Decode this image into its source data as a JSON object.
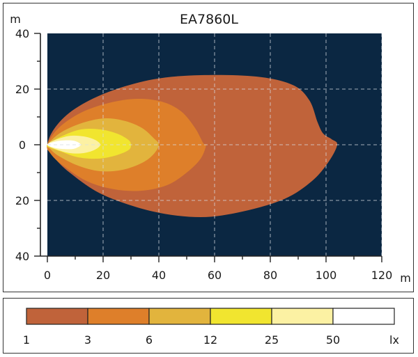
{
  "chart_data": {
    "type": "contour",
    "title": "EA7860L",
    "xlabel": "m",
    "ylabel": "m",
    "xlim": [
      0,
      120
    ],
    "ylim": [
      -40,
      40
    ],
    "x_ticks": [
      0,
      20,
      40,
      60,
      80,
      100,
      120
    ],
    "x_tick_labels": [
      "0",
      "20",
      "40",
      "60",
      "80",
      "100",
      "120"
    ],
    "y_ticks": [
      40,
      20,
      0,
      -20,
      -40
    ],
    "y_tick_labels": [
      "40",
      "20",
      "0",
      "20",
      "40"
    ],
    "grid": true,
    "background_color": "#0b2742",
    "unit": "lx",
    "series": [
      {
        "name": "1",
        "color": "#c0633a",
        "outline": [
          [
            0,
            0
          ],
          [
            3,
            6.5
          ],
          [
            10,
            13
          ],
          [
            22,
            19
          ],
          [
            38,
            23.5
          ],
          [
            55,
            25
          ],
          [
            75,
            24.5
          ],
          [
            88,
            21.5
          ],
          [
            94,
            16
          ],
          [
            97,
            8
          ],
          [
            99,
            4
          ],
          [
            102,
            2
          ],
          [
            104,
            0
          ],
          [
            101,
            -6
          ],
          [
            95,
            -13
          ],
          [
            85,
            -19.5
          ],
          [
            70,
            -24
          ],
          [
            55,
            -26
          ],
          [
            38,
            -24
          ],
          [
            20,
            -18
          ],
          [
            8,
            -10
          ],
          [
            2,
            -4
          ]
        ]
      },
      {
        "name": "3",
        "color": "#de7f2a",
        "outline": [
          [
            0,
            0
          ],
          [
            4,
            6
          ],
          [
            12,
            11.5
          ],
          [
            22,
            15
          ],
          [
            32,
            16.5
          ],
          [
            41,
            15.5
          ],
          [
            48,
            12
          ],
          [
            53,
            6
          ],
          [
            56,
            0.5
          ],
          [
            57,
            0
          ],
          [
            55,
            -5
          ],
          [
            50,
            -10
          ],
          [
            43,
            -14.5
          ],
          [
            34,
            -16.5
          ],
          [
            24,
            -16
          ],
          [
            14,
            -13
          ],
          [
            5,
            -7
          ],
          [
            1,
            -3
          ]
        ]
      },
      {
        "name": "6",
        "color": "#e2b43d",
        "outline": [
          [
            0,
            0
          ],
          [
            5,
            4.5
          ],
          [
            13,
            8
          ],
          [
            21,
            9.5
          ],
          [
            28,
            8.5
          ],
          [
            34,
            6
          ],
          [
            38,
            2.5
          ],
          [
            40,
            0
          ],
          [
            38,
            -3.5
          ],
          [
            34,
            -6.5
          ],
          [
            27,
            -9
          ],
          [
            19,
            -9.5
          ],
          [
            11,
            -7.5
          ],
          [
            4,
            -4
          ],
          [
            1,
            -1.5
          ]
        ]
      },
      {
        "name": "12",
        "color": "#f1e52f",
        "outline": [
          [
            0,
            0
          ],
          [
            5,
            3
          ],
          [
            12,
            5.5
          ],
          [
            19,
            5.5
          ],
          [
            25,
            4
          ],
          [
            29,
            1.8
          ],
          [
            30,
            0
          ],
          [
            29,
            -2
          ],
          [
            24,
            -4
          ],
          [
            18,
            -5
          ],
          [
            11,
            -4.5
          ],
          [
            5,
            -2.5
          ],
          [
            1,
            -1
          ]
        ]
      },
      {
        "name": "25",
        "color": "#fcf1a3",
        "outline": [
          [
            0,
            0
          ],
          [
            3,
            1.8
          ],
          [
            8,
            3.2
          ],
          [
            13,
            3
          ],
          [
            17,
            1.8
          ],
          [
            19,
            0
          ],
          [
            17,
            -1.8
          ],
          [
            13,
            -3
          ],
          [
            8,
            -3
          ],
          [
            3,
            -1.6
          ]
        ]
      },
      {
        "name": "50",
        "color": "#ffffff",
        "outline": [
          [
            0,
            0
          ],
          [
            3,
            1.2
          ],
          [
            7,
            1.6
          ],
          [
            10,
            1.3
          ],
          [
            12,
            0
          ],
          [
            10,
            -1.3
          ],
          [
            7,
            -1.6
          ],
          [
            3,
            -1.2
          ]
        ]
      }
    ],
    "legend": {
      "placement": "bottom",
      "entries": [
        {
          "label": "1",
          "color": "#c0633a"
        },
        {
          "label": "3",
          "color": "#de7f2a"
        },
        {
          "label": "6",
          "color": "#e2b43d"
        },
        {
          "label": "12",
          "color": "#f1e52f"
        },
        {
          "label": "25",
          "color": "#fcf1a3"
        },
        {
          "label": "50",
          "color": "#ffffff"
        }
      ],
      "unit_label": "lx"
    }
  }
}
